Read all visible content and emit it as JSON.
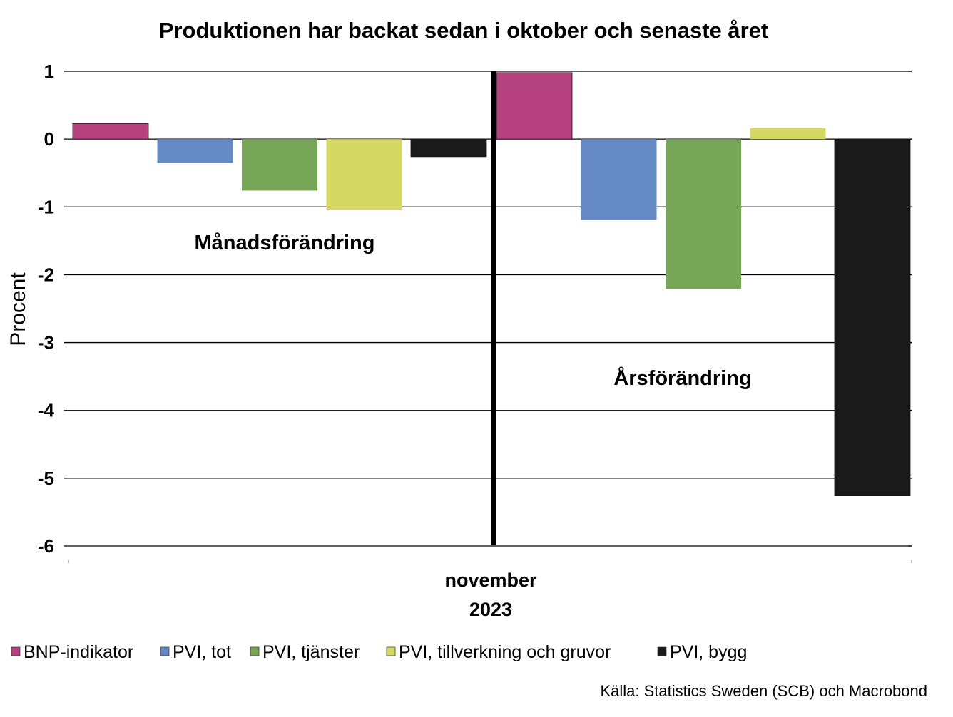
{
  "chart_data": {
    "type": "bar",
    "title": "Produktionen har backat sedan i oktober och senaste året",
    "ylabel": "Procent",
    "xlabel": "",
    "category_label_lines": [
      "november",
      "2023"
    ],
    "ylim": [
      -6,
      1
    ],
    "yticks": [
      1,
      0,
      -1,
      -2,
      -3,
      -4,
      -5,
      -6
    ],
    "grid": true,
    "legend_position": "bottom",
    "groups": [
      {
        "label": "Månadsförändring",
        "values": [
          0.23,
          -0.35,
          -0.76,
          -1.04,
          -0.26
        ]
      },
      {
        "label": "Årsförändring",
        "values": [
          0.98,
          -1.19,
          -2.21,
          0.16,
          -5.26
        ]
      }
    ],
    "series": [
      {
        "name": "BNP-indikator",
        "color": "#b5417f"
      },
      {
        "name": "PVI, tot",
        "color": "#6589c4"
      },
      {
        "name": "PVI, tjänster",
        "color": "#78a658"
      },
      {
        "name": "PVI, tillverkning och gruvor",
        "color": "#d5d964"
      },
      {
        "name": "PVI, bygg",
        "color": "#1a1a1a"
      }
    ],
    "source": "Källa: Statistics Sweden (SCB) och Macrobond"
  }
}
